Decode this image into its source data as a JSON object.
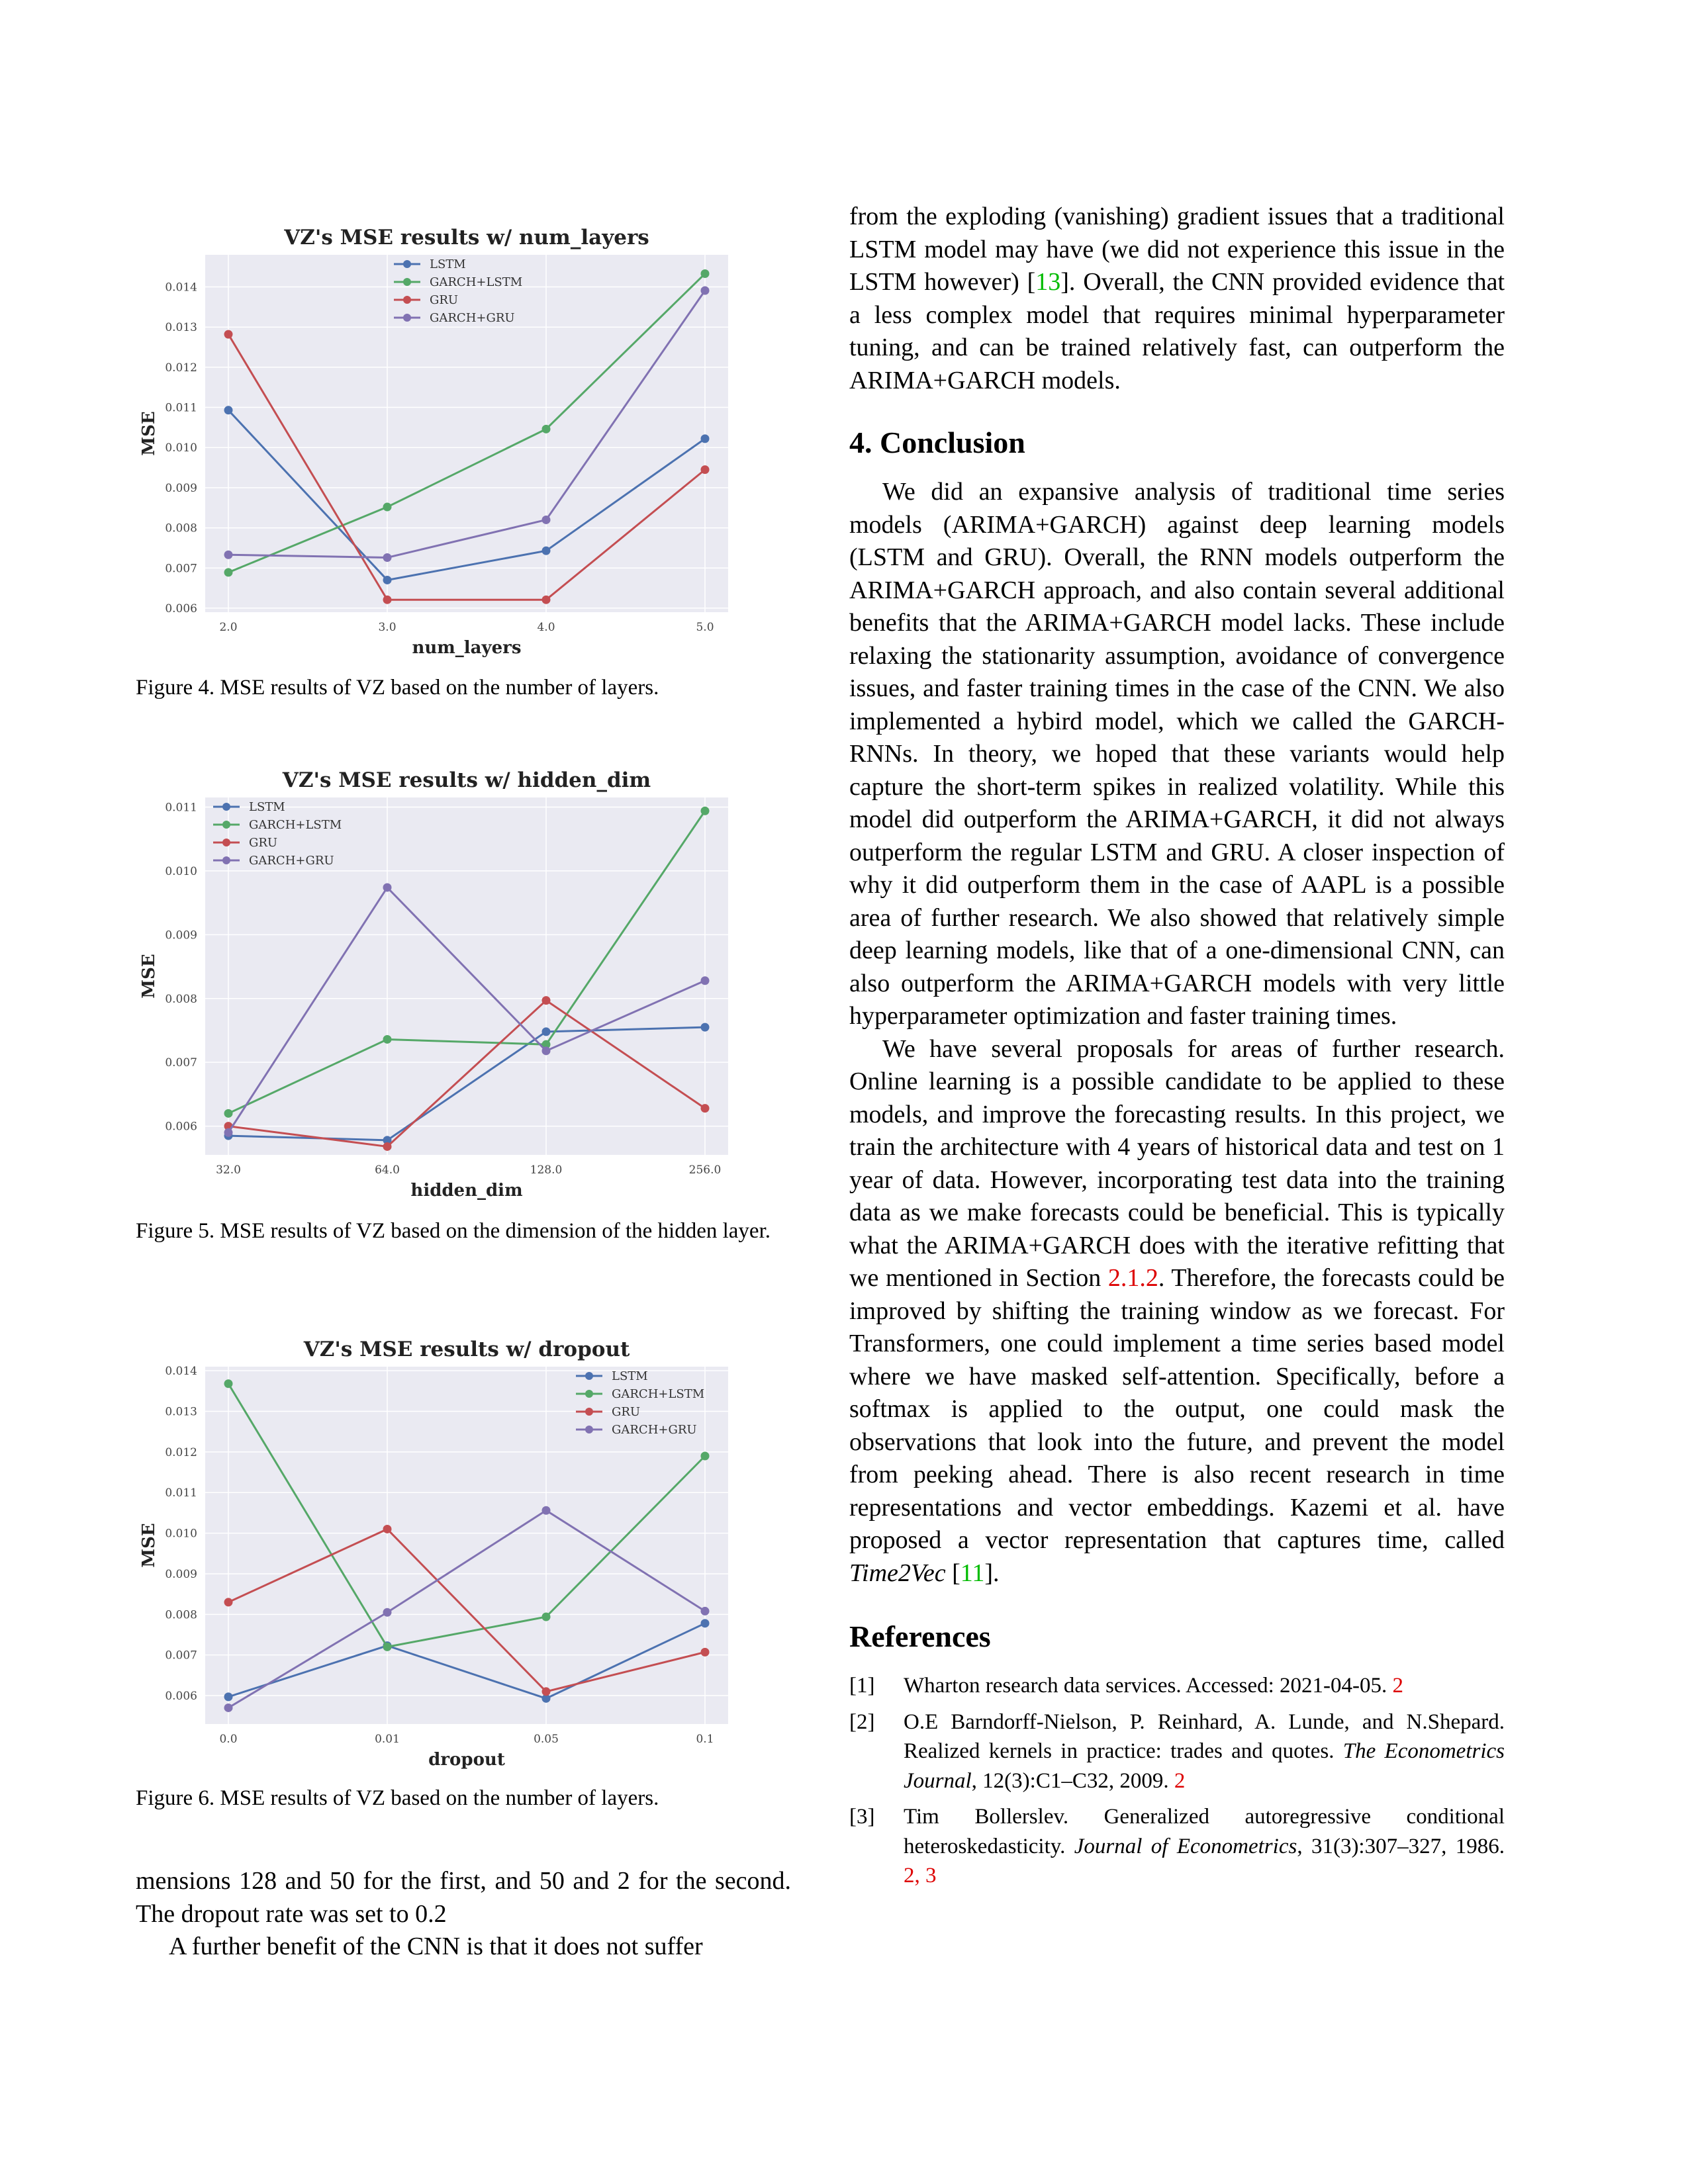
{
  "figures": [
    {
      "caption": "Figure 4. MSE results of VZ based on the number of layers.",
      "chart_data": {
        "type": "line",
        "title": "VZ's MSE results w/ num_layers",
        "xlabel": "num_layers",
        "ylabel": "MSE",
        "categories": [
          "2.0",
          "3.0",
          "4.0",
          "5.0"
        ],
        "yticks": [
          "0.006",
          "0.007",
          "0.008",
          "0.009",
          "0.010",
          "0.011",
          "0.012",
          "0.013",
          "0.014"
        ],
        "ylim": [
          0.0059,
          0.0148
        ],
        "legend_position": "top-center",
        "grid": true,
        "series": [
          {
            "name": "LSTM",
            "color": "#4c72b0",
            "values": [
              0.01093,
              0.0067,
              0.00743,
              0.01022
            ]
          },
          {
            "name": "GARCH+LSTM",
            "color": "#55a868",
            "values": [
              0.00689,
              0.00852,
              0.01046,
              0.01433
            ]
          },
          {
            "name": "GRU",
            "color": "#c44e52",
            "values": [
              0.01282,
              0.00621,
              0.00621,
              0.00945
            ]
          },
          {
            "name": "GARCH+GRU",
            "color": "#8172b2",
            "values": [
              0.00733,
              0.00726,
              0.0082,
              0.01391
            ]
          }
        ]
      }
    },
    {
      "caption": "Figure 5. MSE results of VZ based on the dimension of the hidden layer.",
      "chart_data": {
        "type": "line",
        "title": "VZ's MSE results w/ hidden_dim",
        "xlabel": "hidden_dim",
        "ylabel": "MSE",
        "categories": [
          "32.0",
          "64.0",
          "128.0",
          "256.0"
        ],
        "yticks": [
          "0.006",
          "0.007",
          "0.008",
          "0.009",
          "0.010",
          "0.011"
        ],
        "ylim": [
          0.00555,
          0.01115
        ],
        "legend_position": "top-left",
        "grid": true,
        "series": [
          {
            "name": "LSTM",
            "color": "#4c72b0",
            "values": [
              0.00585,
              0.00578,
              0.00748,
              0.00755
            ]
          },
          {
            "name": "GARCH+LSTM",
            "color": "#55a868",
            "values": [
              0.0062,
              0.00736,
              0.00728,
              0.01094
            ]
          },
          {
            "name": "GRU",
            "color": "#c44e52",
            "values": [
              0.006,
              0.00568,
              0.00797,
              0.00628
            ]
          },
          {
            "name": "GARCH+GRU",
            "color": "#8172b2",
            "values": [
              0.0059,
              0.00974,
              0.00718,
              0.00828
            ]
          }
        ]
      }
    },
    {
      "caption": "Figure 6. MSE results of VZ based on the number of layers.",
      "chart_data": {
        "type": "line",
        "title": "VZ's MSE results w/ dropout",
        "xlabel": "dropout",
        "ylabel": "MSE",
        "categories": [
          "0.0",
          "0.01",
          "0.05",
          "0.1"
        ],
        "yticks": [
          "0.006",
          "0.007",
          "0.008",
          "0.009",
          "0.010",
          "0.011",
          "0.012",
          "0.013",
          "0.014"
        ],
        "ylim": [
          0.0053,
          0.0141
        ],
        "legend_position": "top-right",
        "grid": true,
        "series": [
          {
            "name": "LSTM",
            "color": "#4c72b0",
            "values": [
              0.00597,
              0.00723,
              0.00593,
              0.00778
            ]
          },
          {
            "name": "GARCH+LSTM",
            "color": "#55a868",
            "values": [
              0.01368,
              0.0072,
              0.00794,
              0.0119
            ]
          },
          {
            "name": "GRU",
            "color": "#c44e52",
            "values": [
              0.0083,
              0.0101,
              0.0061,
              0.00707
            ]
          },
          {
            "name": "GARCH+GRU",
            "color": "#8172b2",
            "values": [
              0.0057,
              0.00805,
              0.01056,
              0.00808
            ]
          }
        ]
      }
    }
  ],
  "left_text": {
    "p1": "mensions 128 and 50 for the first, and 50 and 2 for the second. The dropout rate was set to 0.2",
    "p2": "A further benefit of the CNN is that it does not suffer"
  },
  "right_text": {
    "p1_a": "from the exploding (vanishing) gradient issues that a traditional LSTM model may have (we did not experience this issue in the LSTM however) [",
    "p1_cite": "13",
    "p1_b": "]. Overall, the CNN provided evidence that a less complex model that requires minimal hyperparameter tuning, and can be trained relatively fast, can outperform the ARIMA+GARCH models.",
    "conclusion_heading": "4. Conclusion",
    "p2": "We did an expansive analysis of traditional time series models (ARIMA+GARCH) against deep learning models (LSTM and GRU). Overall, the RNN models outperform the ARIMA+GARCH approach, and also contain several additional benefits that the ARIMA+GARCH model lacks. These include relaxing the stationarity assumption, avoidance of convergence issues, and faster training times in the case of the CNN. We also implemented a hybird model, which we called the GARCH-RNNs. In theory, we hoped that these variants would help capture the short-term spikes in realized volatility. While this model did outperform the ARIMA+GARCH, it did not always outperform the regular LSTM and GRU. A closer inspection of why it did outperform them in the case of AAPL is a possible area of further research. We also showed that relatively simple deep learning models, like that of a one-dimensional CNN, can also outperform the ARIMA+GARCH models with very little hyperparameter optimization and faster training times.",
    "p3_a": "We have several proposals for areas of further research. Online learning is a possible candidate to be applied to these models, and improve the forecasting results. In this project, we train the architecture with 4 years of historical data and test on 1 year of data. However, incorporating test data into the training data as we make forecasts could be beneficial. This is typically what the ARIMA+GARCH does with the iterative refitting that we mentioned in Section ",
    "p3_link": "2.1.2",
    "p3_b": ". Therefore, the forecasts could be improved by shifting the training window as we forecast. For Transformers, one could implement a time series based model where we have masked self-attention. Specifically, before a softmax is applied to the output, one could mask the observations that look into the future, and prevent the model from peeking ahead. There is also recent research in time representations and vector embeddings. Kazemi et al. have proposed a vector representation that captures time, called ",
    "p3_em": "Time2Vec",
    "p3_c": " [",
    "p3_cite": "11",
    "p3_d": "].",
    "references_heading": "References",
    "refs": [
      {
        "num": "[1]",
        "a": "Wharton research data services. Accessed: 2021-04-05. ",
        "em": "",
        "b": "",
        "links": "2"
      },
      {
        "num": "[2]",
        "a": "O.E Barndorff-Nielson, P. Reinhard, A. Lunde, and N.Shepard. Realized kernels in practice: trades and quotes. ",
        "em": "The Econometrics Journal",
        "b": ", 12(3):C1–C32, 2009. ",
        "links": "2"
      },
      {
        "num": "[3]",
        "a": "Tim Bollerslev. Generalized autoregressive conditional heteroskedasticity. ",
        "em": "Journal of Econometrics",
        "b": ", 31(3):307–327, 1986. ",
        "links": "2, 3"
      }
    ]
  }
}
